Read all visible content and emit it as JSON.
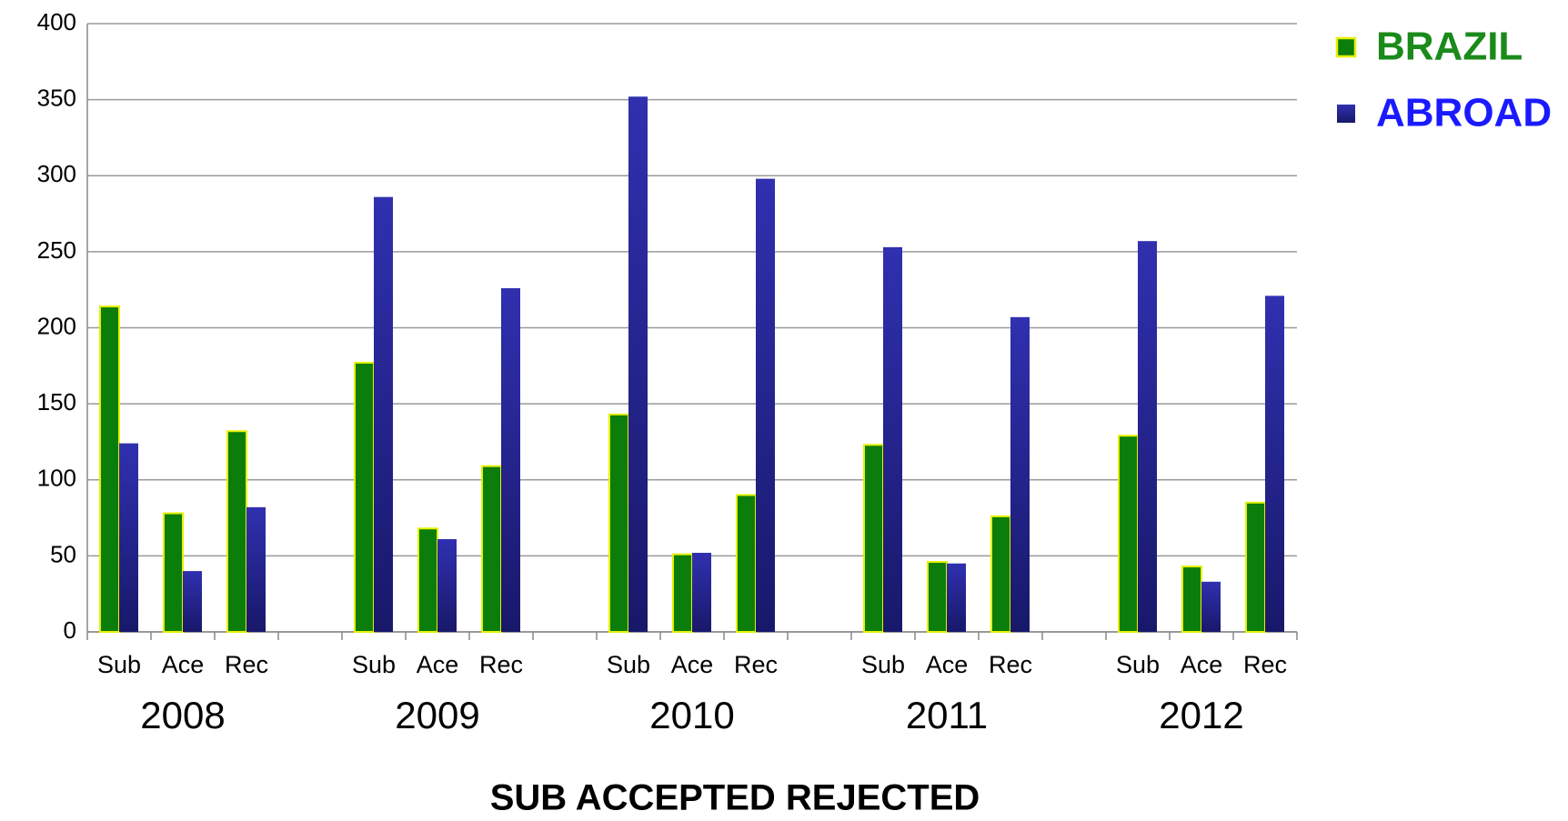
{
  "chart_data": {
    "type": "bar",
    "title": "SUB ACCEPTED REJECTED",
    "categories": [
      "Sub",
      "Ace",
      "Rec",
      null,
      "Sub",
      "Ace",
      "Rec",
      null,
      "Sub",
      "Ace",
      "Rec",
      null,
      "Sub",
      "Ace",
      "Rec",
      null,
      "Sub",
      "Ace",
      "Rec"
    ],
    "group_labels": [
      "2008",
      "2009",
      "2010",
      "2011",
      "2012"
    ],
    "series": [
      {
        "name": "BRAZIL",
        "color": "#0b7d0b",
        "edge_color": "#e6f000",
        "label_color": "#1a8a1a",
        "values": [
          214,
          78,
          132,
          null,
          177,
          68,
          109,
          null,
          143,
          51,
          90,
          null,
          123,
          46,
          76,
          null,
          129,
          43,
          85
        ]
      },
      {
        "name": "ABROAD",
        "color": "#26269a",
        "label_color": "#1a1aff",
        "values": [
          124,
          40,
          82,
          null,
          286,
          61,
          226,
          null,
          352,
          52,
          298,
          null,
          253,
          45,
          207,
          null,
          257,
          33,
          221
        ]
      }
    ],
    "ylim": [
      0,
      400
    ],
    "yticks": [
      0,
      50,
      100,
      150,
      200,
      250,
      300,
      350,
      400
    ],
    "grid": true,
    "legend": "top-right"
  }
}
